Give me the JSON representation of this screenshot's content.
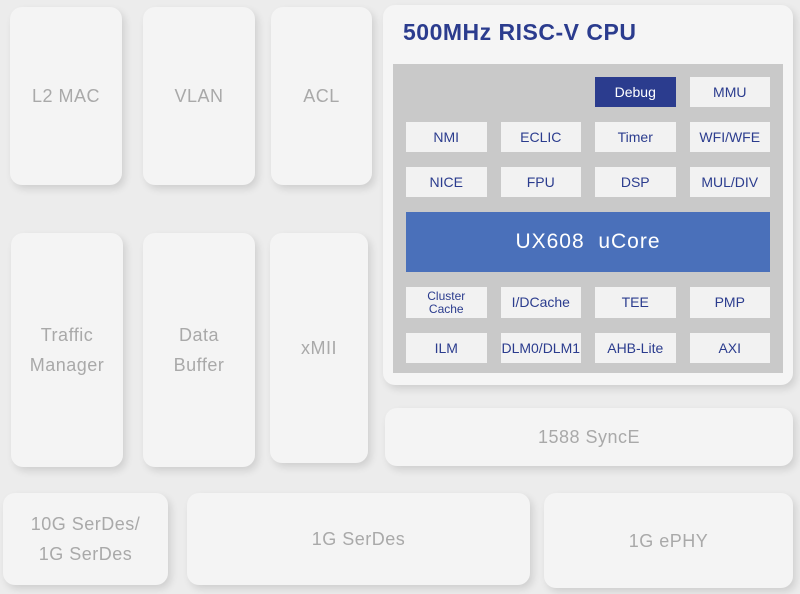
{
  "colors": {
    "background": "#ececec",
    "card": "#f4f4f4",
    "card_text": "#a9a9a9",
    "panel": "#f5f5f5",
    "panel_gray": "#c9c9c9",
    "box": "#f2f2f2",
    "navy": "#2b3c8e",
    "core_blue": "#4a70ba"
  },
  "blocks": {
    "l2_mac": "L2 MAC",
    "vlan": "VLAN",
    "acl": "ACL",
    "traffic_manager": "Traffic\nManager",
    "data_buffer": "Data\nBuffer",
    "xmii": "xMII",
    "serdes_10g": "10G SerDes/\n1G SerDes",
    "serdes_1g": "1G SerDes",
    "ephy_1g": "1G ePHY",
    "sync_1588": "1588 SyncE"
  },
  "cpu": {
    "title": "500MHz RISC-V CPU",
    "debug": "Debug",
    "mmu": "MMU",
    "row2": [
      "NMI",
      "ECLIC",
      "Timer",
      "WFI/WFE"
    ],
    "row3": [
      "NICE",
      "FPU",
      "DSP",
      "MUL/DIV"
    ],
    "core": "UX608  uCore",
    "row4": [
      "Cluster Cache",
      "I/DCache",
      "TEE",
      "PMP"
    ],
    "row5": [
      "ILM",
      "DLM0/DLM1",
      "AHB-Lite",
      "AXI"
    ]
  }
}
